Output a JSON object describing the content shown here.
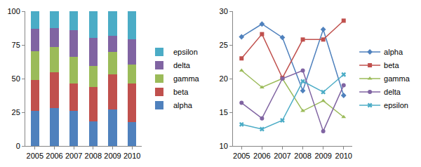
{
  "chart_data": [
    {
      "type": "bar",
      "stacked": true,
      "grid": false,
      "legend": "right",
      "categories": [
        "2005",
        "2006",
        "2007",
        "2008",
        "2009",
        "2010"
      ],
      "ylim": [
        0,
        100
      ],
      "yticks": [
        0,
        25,
        50,
        75,
        100
      ],
      "series": [
        {
          "name": "alpha",
          "color": "#4f81bd",
          "values": [
            26.2,
            28.1,
            26.1,
            18.2,
            27.3,
            17.5
          ]
        },
        {
          "name": "beta",
          "color": "#c0504d",
          "values": [
            23.0,
            26.6,
            20.1,
            25.8,
            25.8,
            28.6
          ]
        },
        {
          "name": "gamma",
          "color": "#9bbb59",
          "values": [
            21.2,
            18.7,
            20.0,
            15.2,
            16.7,
            14.3
          ]
        },
        {
          "name": "delta",
          "color": "#8064a2",
          "values": [
            16.4,
            14.1,
            20.0,
            21.2,
            12.2,
            19.0
          ]
        },
        {
          "name": "epsilon",
          "color": "#4bacc6",
          "values": [
            13.2,
            12.5,
            13.8,
            19.6,
            18.0,
            20.6
          ]
        }
      ]
    },
    {
      "type": "line",
      "grid": false,
      "legend": "right",
      "categories": [
        "2005",
        "2006",
        "2007",
        "2008",
        "2009",
        "2010"
      ],
      "ylim": [
        10,
        30
      ],
      "yticks": [
        10,
        15,
        20,
        25,
        30
      ],
      "series": [
        {
          "name": "alpha",
          "color": "#4f81bd",
          "marker": "diamond",
          "values": [
            26.2,
            28.1,
            26.1,
            18.2,
            27.3,
            17.5
          ]
        },
        {
          "name": "beta",
          "color": "#c0504d",
          "marker": "square",
          "values": [
            23.0,
            26.6,
            20.1,
            25.8,
            25.8,
            28.6
          ]
        },
        {
          "name": "gamma",
          "color": "#9bbb59",
          "marker": "triangle-up",
          "values": [
            21.2,
            18.7,
            20.0,
            15.2,
            16.7,
            14.3
          ]
        },
        {
          "name": "delta",
          "color": "#8064a2",
          "marker": "circle",
          "values": [
            16.4,
            14.1,
            20.0,
            21.2,
            12.2,
            19.0
          ]
        },
        {
          "name": "epsilon",
          "color": "#4bacc6",
          "marker": "x",
          "values": [
            13.2,
            12.5,
            13.8,
            19.6,
            18.0,
            20.6
          ]
        }
      ]
    }
  ]
}
